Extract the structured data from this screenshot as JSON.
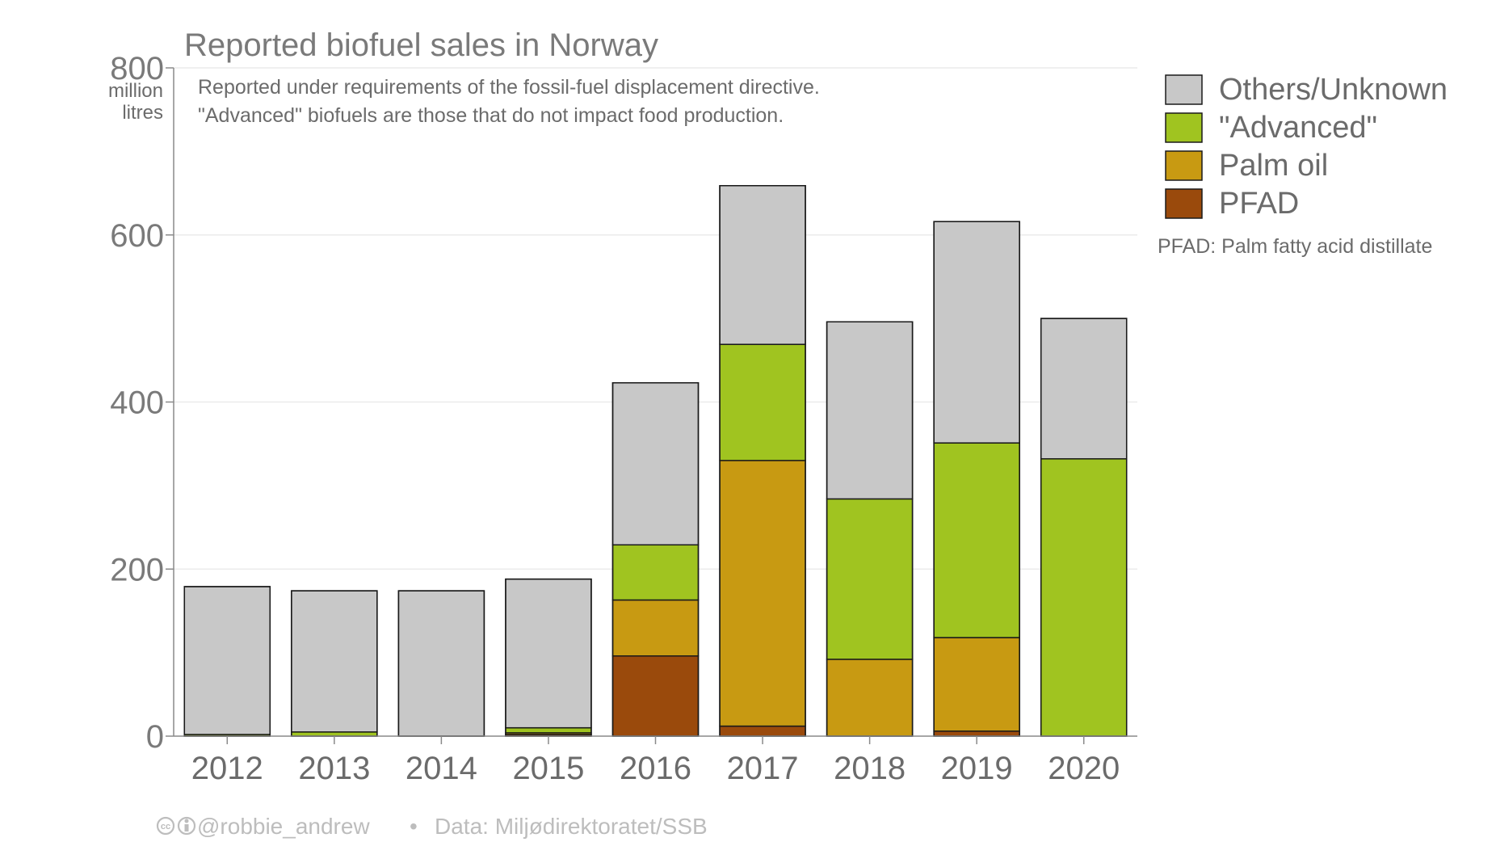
{
  "chart_data": {
    "type": "bar",
    "stacked": true,
    "title": "Reported biofuel sales in Norway",
    "subtitle_lines": [
      "Reported under requirements of the fossil-fuel displacement directive.",
      "\"Advanced\" biofuels are those that do not impact food production."
    ],
    "ylabel_lines": [
      "million",
      "litres"
    ],
    "ylim": [
      0,
      800
    ],
    "yticks": [
      0,
      200,
      400,
      600,
      800
    ],
    "categories": [
      "2012",
      "2013",
      "2014",
      "2015",
      "2016",
      "2017",
      "2018",
      "2019",
      "2020"
    ],
    "series": [
      {
        "name": "PFAD",
        "color": "#9a4a0c",
        "values": [
          0,
          0,
          0,
          2,
          96,
          12,
          0,
          6,
          0
        ]
      },
      {
        "name": "Palm oil",
        "color": "#c89a12",
        "values": [
          0,
          0,
          0,
          2,
          67,
          318,
          92,
          112,
          0
        ]
      },
      {
        "name": "\"Advanced\"",
        "color": "#a0c420",
        "values": [
          2,
          5,
          0,
          6,
          66,
          139,
          192,
          233,
          332
        ]
      },
      {
        "name": "Others/Unknown",
        "color": "#c8c8c8",
        "values": [
          177,
          169,
          174,
          178,
          194,
          190,
          212,
          265,
          168
        ]
      }
    ],
    "legend_order": [
      "Others/Unknown",
      "\"Advanced\"",
      "Palm oil",
      "PFAD"
    ],
    "legend_placement": "right",
    "legend_note": "PFAD: Palm fatty acid distillate",
    "grid": true,
    "credit": {
      "handle": "@robbie_andrew",
      "separator": "•",
      "source": "Data: Miljødirektoratet/SSB"
    }
  }
}
